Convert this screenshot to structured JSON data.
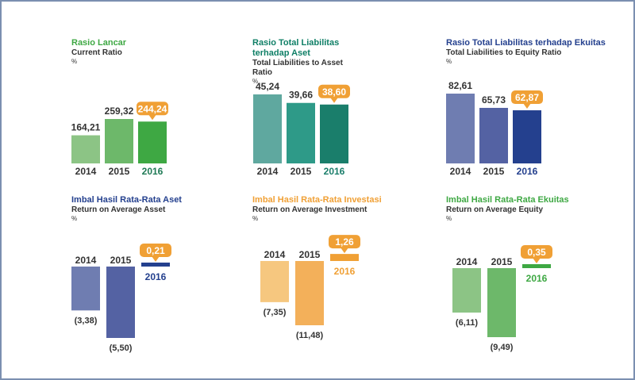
{
  "colors": {
    "green": "#3ea843",
    "teal": "#0f7f66",
    "navy": "#24408e",
    "orange": "#f0a035",
    "axis": "#333333",
    "callout_text": "#ffffff"
  },
  "panels": [
    {
      "id": "rasio-lancar",
      "title_id": "Rasio Lancar",
      "title_en": "Current Ratio",
      "unit": "%",
      "title_color": "#3ea843",
      "chart_data": {
        "type": "bar",
        "title": "Rasio Lancar / Current Ratio",
        "unit": "%",
        "categories": [
          "2014",
          "2015",
          "2016"
        ],
        "values": [
          164.21,
          259.32,
          244.24
        ],
        "labels": [
          "164,21",
          "259,32",
          "244,24"
        ],
        "colors": [
          "#8cc485",
          "#6db86a",
          "#3ea843"
        ],
        "highlight": 2,
        "highlight_color": "#f0a035",
        "year_colors": [
          "#333333",
          "#333333",
          "#1f7a55"
        ]
      }
    },
    {
      "id": "liabilitas-aset",
      "title_id": "Rasio Total Liabilitas\nterhadap Aset",
      "title_en": "Total Liabilities to Asset\nRatio",
      "unit": "%",
      "title_color": "#0f7f66",
      "chart_data": {
        "type": "bar",
        "title": "Rasio Total Liabilitas terhadap Aset / Total Liabilities to Asset Ratio",
        "unit": "%",
        "categories": [
          "2014",
          "2015",
          "2016"
        ],
        "values": [
          45.24,
          39.66,
          38.6
        ],
        "labels": [
          "45,24",
          "39,66",
          "38,60"
        ],
        "colors": [
          "#5fa89f",
          "#2e9a88",
          "#1a7e6b"
        ],
        "highlight": 2,
        "highlight_color": "#f0a035",
        "year_colors": [
          "#333333",
          "#333333",
          "#1a7e6b"
        ]
      }
    },
    {
      "id": "liabilitas-ekuitas",
      "title_id": "Rasio Total Liabilitas terhadap Ekuitas",
      "title_en": "Total Liabilities to Equity Ratio",
      "unit": "%",
      "title_color": "#24408e",
      "chart_data": {
        "type": "bar",
        "title": "Rasio Total Liabilitas terhadap Ekuitas / Total Liabilities to Equity Ratio",
        "unit": "%",
        "categories": [
          "2014",
          "2015",
          "2016"
        ],
        "values": [
          82.61,
          65.73,
          62.87
        ],
        "labels": [
          "82,61",
          "65,73",
          "62,87"
        ],
        "colors": [
          "#6f7db1",
          "#5462a3",
          "#24408e"
        ],
        "highlight": 2,
        "highlight_color": "#f0a035",
        "year_colors": [
          "#333333",
          "#333333",
          "#24408e"
        ]
      }
    },
    {
      "id": "roaa",
      "title_id": "Imbal Hasil Rata-Rata Aset",
      "title_en": "Return on Average Asset",
      "unit": "%",
      "title_color": "#24408e",
      "chart_data": {
        "type": "bar",
        "title": "Imbal Hasil Rata-Rata Aset / Return on Average Asset",
        "unit": "%",
        "categories": [
          "2014",
          "2015",
          "2016"
        ],
        "values": [
          -3.38,
          -5.5,
          0.21
        ],
        "labels": [
          "(3,38)",
          "(5,50)",
          "0,21"
        ],
        "colors": [
          "#6f7db1",
          "#5462a3",
          "#24408e"
        ],
        "highlight": 2,
        "highlight_color": "#f0a035",
        "year_colors": [
          "#333333",
          "#333333",
          "#24408e"
        ]
      }
    },
    {
      "id": "roai",
      "title_id": "Imbal Hasil Rata-Rata Investasi",
      "title_en": "Return on Average Investment",
      "unit": "%",
      "title_color": "#f0a035",
      "chart_data": {
        "type": "bar",
        "title": "Imbal Hasil Rata-Rata Investasi / Return on Average Investment",
        "unit": "%",
        "categories": [
          "2014",
          "2015",
          "2016"
        ],
        "values": [
          -7.35,
          -11.48,
          1.26
        ],
        "labels": [
          "(7,35)",
          "(11,48)",
          "1,26"
        ],
        "colors": [
          "#f6c77f",
          "#f3b05a",
          "#f0a035"
        ],
        "highlight": 2,
        "highlight_color": "#f0a035",
        "year_colors": [
          "#333333",
          "#333333",
          "#f0a035"
        ]
      }
    },
    {
      "id": "roae",
      "title_id": "Imbal Hasil Rata-Rata Ekuitas",
      "title_en": "Return on Average Equity",
      "unit": "%",
      "title_color": "#3ea843",
      "chart_data": {
        "type": "bar",
        "title": "Imbal Hasil Rata-Rata Ekuitas / Return on Average Equity",
        "unit": "%",
        "categories": [
          "2014",
          "2015",
          "2016"
        ],
        "values": [
          -6.11,
          -9.49,
          0.35
        ],
        "labels": [
          "(6,11)",
          "(9,49)",
          "0,35"
        ],
        "colors": [
          "#8cc485",
          "#6db86a",
          "#3ea843"
        ],
        "highlight": 2,
        "highlight_color": "#f0a035",
        "year_colors": [
          "#333333",
          "#333333",
          "#3ea843"
        ]
      }
    }
  ]
}
